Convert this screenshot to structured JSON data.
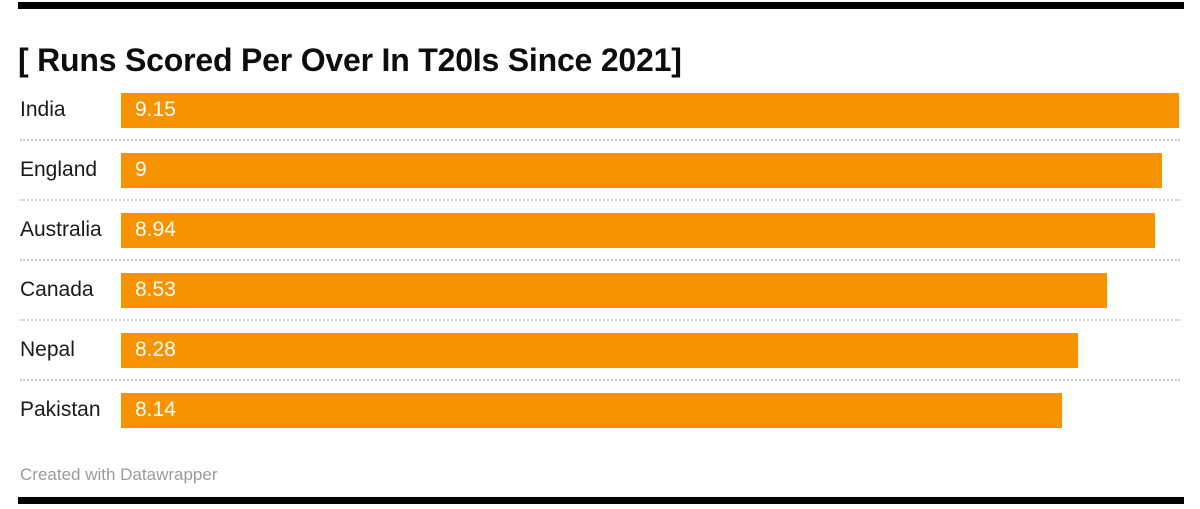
{
  "title": "[ Runs Scored Per Over In T20Is Since 2021]",
  "chart_data": {
    "type": "bar",
    "orientation": "horizontal",
    "title": "[ Runs Scored Per Over In T20Is Since 2021]",
    "categories": [
      "India",
      "England",
      "Australia",
      "Canada",
      "Nepal",
      "Pakistan"
    ],
    "values": [
      9.15,
      9,
      8.94,
      8.53,
      8.28,
      8.14
    ],
    "value_labels": [
      "9.15",
      "9",
      "8.94",
      "8.53",
      "8.28",
      "8.14"
    ],
    "xlabel": "",
    "ylabel": "",
    "axis_min": 0,
    "axis_max": 9.15,
    "grid": false,
    "legend": false,
    "bar_color": "#f89300",
    "value_label_color": "#ffffff",
    "separator_style": "dotted"
  },
  "footer": {
    "credit": "Created with Datawrapper"
  },
  "colors": {
    "bar_orange": "#f89300",
    "title_text": "#0d0d0d",
    "category_text": "#1a1a1a",
    "credit_text": "#9b9b9b",
    "separator": "#cbcbcb",
    "rule_black": "#000000",
    "background": "#ffffff"
  }
}
